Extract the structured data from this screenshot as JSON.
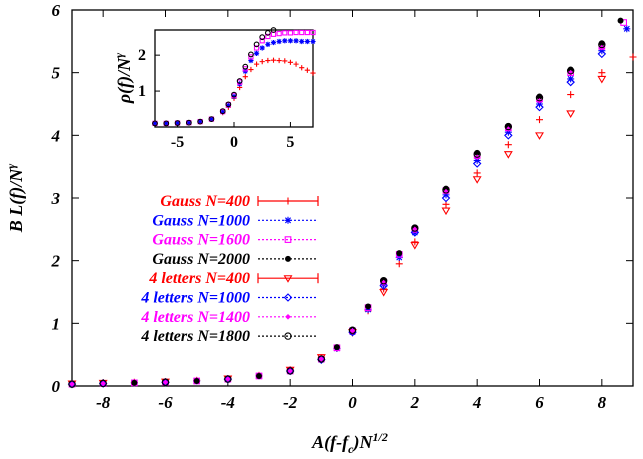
{
  "chart_data": [
    {
      "type": "scatter",
      "title": "",
      "xlabel": "A(f-f_c)N^{1/2}",
      "ylabel": "B L(f)/N^{γ}",
      "xlim": [
        -9,
        9
      ],
      "ylim": [
        0,
        6
      ],
      "x_ticks": [
        -8,
        -6,
        -4,
        -2,
        0,
        2,
        4,
        6,
        8
      ],
      "y_ticks": [
        0,
        1,
        2,
        3,
        4,
        5,
        6
      ],
      "grid": false,
      "legend_position": "left-middle",
      "series": [
        {
          "name": "Gauss N=400",
          "color": "#ff0000",
          "marker": "plus",
          "errorbar": true,
          "x": [
            -9,
            -8,
            -7,
            -6,
            -5,
            -4,
            -3,
            -2,
            -1,
            -0.5,
            0,
            0.5,
            1,
            1.5,
            2,
            3,
            4,
            5,
            6,
            7,
            8,
            9
          ],
          "y": [
            0.04,
            0.05,
            0.06,
            0.07,
            0.09,
            0.12,
            0.17,
            0.26,
            0.45,
            0.6,
            0.85,
            1.2,
            1.55,
            1.95,
            2.3,
            2.9,
            3.4,
            3.85,
            4.25,
            4.65,
            5.0,
            5.25
          ]
        },
        {
          "name": "Gauss N=1000",
          "color": "#0000ff",
          "marker": "star",
          "errorbar": false,
          "x": [
            -9,
            -8,
            -7,
            -6,
            -5,
            -4,
            -3,
            -2,
            -1,
            -0.5,
            0,
            0.5,
            1,
            1.5,
            2,
            3,
            4,
            5,
            6,
            7,
            8,
            8.8
          ],
          "y": [
            0.03,
            0.04,
            0.05,
            0.06,
            0.08,
            0.11,
            0.16,
            0.24,
            0.42,
            0.6,
            0.86,
            1.22,
            1.62,
            2.05,
            2.45,
            3.05,
            3.6,
            4.05,
            4.5,
            4.9,
            5.35,
            5.7
          ]
        },
        {
          "name": "Gauss N=1600",
          "color": "#ff00ff",
          "marker": "square",
          "errorbar": false,
          "x": [
            -9,
            -8,
            -7,
            -6,
            -5,
            -4,
            -3,
            -2,
            -1,
            -0.5,
            0,
            0.5,
            1,
            1.5,
            2,
            3,
            4,
            5,
            6,
            7,
            8,
            8.7
          ],
          "y": [
            0.03,
            0.04,
            0.05,
            0.06,
            0.08,
            0.11,
            0.16,
            0.24,
            0.43,
            0.61,
            0.88,
            1.25,
            1.66,
            2.1,
            2.5,
            3.12,
            3.68,
            4.12,
            4.58,
            5.0,
            5.42,
            5.8
          ]
        },
        {
          "name": "Gauss N=2000",
          "color": "#000000",
          "marker": "filled-circle",
          "errorbar": false,
          "x": [
            -9,
            -8,
            -7,
            -6,
            -5,
            -4,
            -3,
            -2,
            -1,
            -0.5,
            0,
            0.5,
            1,
            1.5,
            2,
            3,
            4,
            5,
            6,
            7,
            8,
            8.6
          ],
          "y": [
            0.03,
            0.04,
            0.05,
            0.06,
            0.08,
            0.11,
            0.16,
            0.24,
            0.43,
            0.62,
            0.89,
            1.27,
            1.68,
            2.12,
            2.53,
            3.15,
            3.72,
            4.15,
            4.62,
            5.05,
            5.47,
            5.83
          ]
        },
        {
          "name": "4 letters N=400",
          "color": "#ff0000",
          "marker": "triangle-down",
          "errorbar": true,
          "x": [
            -9,
            -8,
            -6,
            -4,
            -2,
            -1,
            0,
            1,
            2,
            3,
            4,
            5,
            6,
            7,
            8
          ],
          "y": [
            0.04,
            0.05,
            0.07,
            0.12,
            0.26,
            0.46,
            0.86,
            1.5,
            2.25,
            2.8,
            3.3,
            3.7,
            4.0,
            4.35,
            4.9
          ]
        },
        {
          "name": "4 letters N=1000",
          "color": "#0000ff",
          "marker": "diamond",
          "errorbar": false,
          "x": [
            -9,
            -8,
            -6,
            -4,
            -2,
            -1,
            0,
            1,
            2,
            3,
            4,
            5,
            6,
            7,
            8
          ],
          "y": [
            0.03,
            0.04,
            0.06,
            0.11,
            0.24,
            0.42,
            0.86,
            1.6,
            2.45,
            3.0,
            3.55,
            4.0,
            4.45,
            4.85,
            5.3
          ]
        },
        {
          "name": "4 letters N=1400",
          "color": "#ff00ff",
          "marker": "filled-diamond",
          "errorbar": false,
          "x": [
            -9,
            -8,
            -6,
            -4,
            -2,
            -1,
            0,
            1,
            2,
            3,
            4,
            5,
            6,
            7,
            8
          ],
          "y": [
            0.03,
            0.04,
            0.06,
            0.11,
            0.24,
            0.43,
            0.88,
            1.65,
            2.5,
            3.1,
            3.65,
            4.1,
            4.55,
            5.0,
            5.4
          ]
        },
        {
          "name": "4 letters N=1800",
          "color": "#000000",
          "marker": "open-circle",
          "errorbar": false,
          "x": [
            -9,
            -8,
            -6,
            -4,
            -2,
            -1,
            0,
            1,
            2,
            3,
            4,
            5,
            6,
            7,
            8
          ],
          "y": [
            0.03,
            0.04,
            0.06,
            0.11,
            0.24,
            0.43,
            0.89,
            1.68,
            2.52,
            3.13,
            3.7,
            4.14,
            4.6,
            5.03,
            5.45
          ]
        }
      ]
    },
    {
      "type": "scatter",
      "title": "",
      "xlabel": "",
      "ylabel": "ρ(f)/N^{γ}",
      "xlim": [
        -7,
        7
      ],
      "ylim": [
        0,
        2.7
      ],
      "x_ticks": [
        -5,
        0,
        5
      ],
      "y_ticks": [
        1,
        2
      ],
      "grid": false,
      "position": "inset-top-left",
      "series": [
        {
          "color": "#ff0000",
          "marker": "plus",
          "x": [
            -7,
            -6,
            -5,
            -4,
            -3,
            -2,
            -1,
            -0.5,
            0,
            0.5,
            1,
            1.5,
            2,
            2.5,
            3,
            3.5,
            4,
            4.5,
            5,
            5.5,
            6,
            6.5,
            7
          ],
          "y": [
            0.1,
            0.1,
            0.11,
            0.12,
            0.15,
            0.22,
            0.4,
            0.55,
            0.8,
            1.1,
            1.4,
            1.6,
            1.75,
            1.82,
            1.85,
            1.86,
            1.85,
            1.84,
            1.8,
            1.75,
            1.65,
            1.58,
            1.5
          ]
        },
        {
          "color": "#0000ff",
          "marker": "star",
          "x": [
            -7,
            -6,
            -5,
            -4,
            -3,
            -2,
            -1,
            -0.5,
            0,
            0.5,
            1,
            1.5,
            2,
            2.5,
            3,
            3.5,
            4,
            4.5,
            5,
            5.5,
            6,
            6.5,
            7
          ],
          "y": [
            0.1,
            0.1,
            0.11,
            0.12,
            0.15,
            0.22,
            0.42,
            0.6,
            0.85,
            1.2,
            1.55,
            1.85,
            2.05,
            2.2,
            2.3,
            2.35,
            2.38,
            2.4,
            2.4,
            2.4,
            2.38,
            2.38,
            2.38
          ]
        },
        {
          "color": "#ff00ff",
          "marker": "square",
          "x": [
            -7,
            -6,
            -5,
            -4,
            -3,
            -2,
            -1,
            -0.5,
            0,
            0.5,
            1,
            1.5,
            2,
            2.5,
            3,
            3.5,
            4,
            4.5,
            5,
            5.5,
            6,
            6.5,
            7
          ],
          "y": [
            0.1,
            0.1,
            0.11,
            0.12,
            0.15,
            0.22,
            0.43,
            0.62,
            0.88,
            1.25,
            1.62,
            1.95,
            2.2,
            2.4,
            2.52,
            2.58,
            2.6,
            2.62,
            2.62,
            2.63,
            2.63,
            2.63,
            2.63
          ]
        },
        {
          "color": "#000000",
          "marker": "open-circle",
          "x": [
            -7,
            -6,
            -5,
            -4,
            -3,
            -2,
            -1,
            -0.5,
            0,
            0.5,
            1,
            1.5,
            2,
            2.5,
            3,
            3.5,
            4,
            4.5,
            5,
            5.5,
            6,
            6.5,
            7
          ],
          "y": [
            0.1,
            0.1,
            0.11,
            0.12,
            0.15,
            0.22,
            0.44,
            0.63,
            0.9,
            1.28,
            1.68,
            2.02,
            2.3,
            2.5,
            2.62,
            2.7,
            2.72,
            2.73,
            2.73,
            2.74,
            2.74,
            2.74,
            2.74
          ]
        }
      ]
    }
  ]
}
